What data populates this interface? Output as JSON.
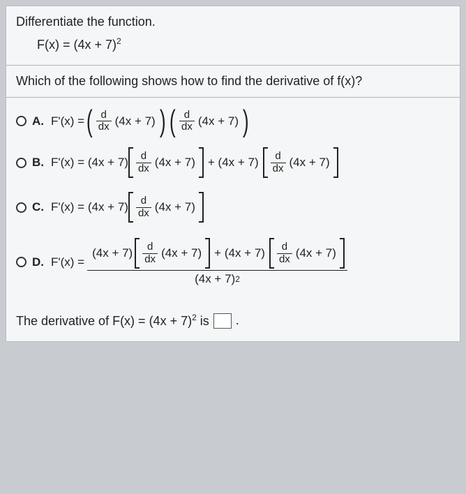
{
  "colors": {
    "page_bg": "#c8ccd0",
    "sheet_bg": "#f5f6f7",
    "border": "#b0b4b8",
    "text": "#222222"
  },
  "prompt": "Differentiate the function.",
  "function_label": "F(x) = (4x + 7)",
  "function_exp": "2",
  "question": "Which of the following shows how to find the derivative of f(x)?",
  "ddx_num": "d",
  "ddx_den": "dx",
  "inner": "(4x + 7)",
  "outer": "(4x + 7)",
  "plus_outer": "+ (4x + 7)",
  "choices": {
    "A": {
      "letter": "A.",
      "lhs": "F'(x) ="
    },
    "B": {
      "letter": "B.",
      "lhs": "F'(x) = (4x + 7)"
    },
    "C": {
      "letter": "C.",
      "lhs": "F'(x) = (4x + 7)"
    },
    "D": {
      "letter": "D.",
      "lhs": "F'(x) =",
      "den": "(4x + 7)",
      "den_exp": "2"
    }
  },
  "answer": {
    "pre": "The derivative of F(x) = (4x + 7)",
    "exp": "2",
    "post": " is",
    "period": "."
  }
}
